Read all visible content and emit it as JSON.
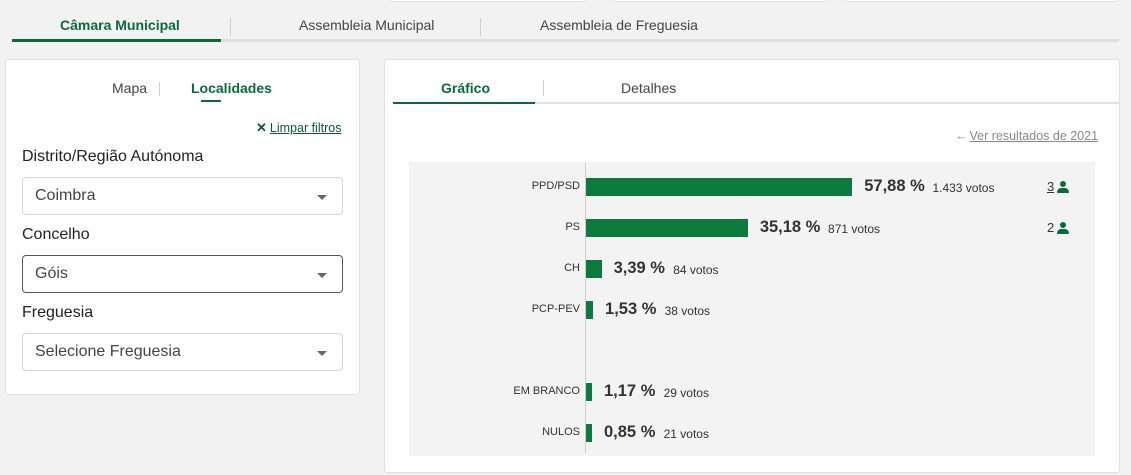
{
  "main_tabs": [
    {
      "label": "Câmara Municipal",
      "active": true
    },
    {
      "label": "Assembleia Municipal",
      "active": false
    },
    {
      "label": "Assembleia de Freguesia",
      "active": false
    }
  ],
  "filters_panel": {
    "tabs": [
      {
        "label": "Mapa",
        "active": false
      },
      {
        "label": "Localidades",
        "active": true
      }
    ],
    "clear_filters": "Limpar filtros",
    "district": {
      "label": "Distrito/Região Autónoma",
      "value": "Coimbra"
    },
    "municipality": {
      "label": "Concelho",
      "value": "Góis"
    },
    "parish": {
      "label": "Freguesia",
      "value": "Selecione Freguesia"
    }
  },
  "results_panel": {
    "tabs": [
      {
        "label": "Gráfico",
        "active": true
      },
      {
        "label": "Detalhes",
        "active": false
      }
    ],
    "previous_results_link": "Ver resultados de 2021"
  },
  "chart_data": {
    "type": "bar",
    "orientation": "horizontal",
    "categories": [
      "PPD/PSD",
      "PS",
      "CH",
      "PCP-PEV",
      "EM BRANCO",
      "NULOS"
    ],
    "values": [
      57.88,
      35.18,
      3.39,
      1.53,
      1.17,
      0.85
    ],
    "value_labels": [
      "57,88 %",
      "35,18 %",
      "3,39 %",
      "1,53 %",
      "1,17 %",
      "0,85 %"
    ],
    "votes": [
      1433,
      871,
      84,
      38,
      29,
      21
    ],
    "votes_labels": [
      "1.433 votos",
      "871 votos",
      "84 votos",
      "38 votos",
      "29 votos",
      "21 votos"
    ],
    "seats": [
      "3",
      "2",
      "",
      "",
      "",
      ""
    ],
    "bar_color": "#0b7a3c"
  }
}
